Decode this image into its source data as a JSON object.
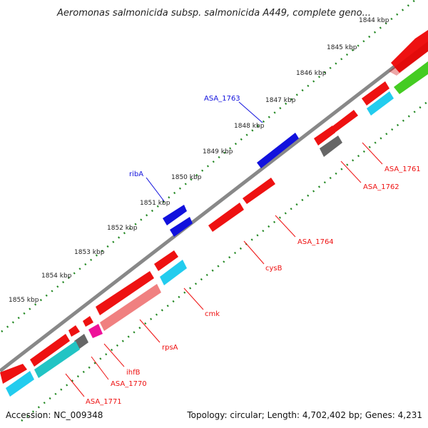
{
  "title": "Aeromonas salmonicida subsp. salmonicida A449, complete geno...",
  "footer": {
    "accession": "Accession: NC_009348",
    "summary": "Topology: circular; Length: 4,702,402 bp; Genes: 4,231"
  },
  "ticks": [
    "1844 kbp",
    "1845 kbp",
    "1846 kbp",
    "1847 kbp",
    "1848 kbp",
    "1849 kbp",
    "1850 kbp",
    "1851 kbp",
    "1852 kbp",
    "1853 kbp",
    "1854 kbp",
    "1855 kbp"
  ],
  "labels": {
    "asa1763": "ASA_1763",
    "ribA": "ribA",
    "asa1761": "ASA_1761",
    "asa1762": "ASA_1762",
    "asa1764": "ASA_1764",
    "cysB": "cysB",
    "cmk": "cmk",
    "rpsA": "rpsA",
    "ihfB": "ihfB",
    "asa1770": "ASA_1770",
    "asa1771": "ASA_1771"
  },
  "colors": {
    "red": "#ee1111",
    "blue": "#1111dd",
    "cyan": "#22ccee",
    "green": "#44cc22",
    "gray": "#777777",
    "salmon": "#f08080",
    "magenta": "#ee1199",
    "teal": "#22c4c4",
    "ring": "#888888",
    "tick": "#228822"
  }
}
